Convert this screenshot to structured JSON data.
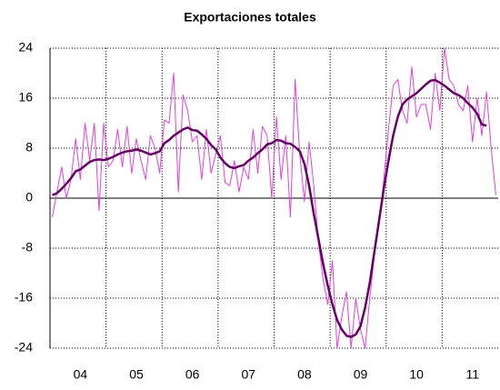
{
  "chart_data": {
    "type": "line",
    "title": "Exportaciones totales",
    "categories": [
      null,
      null,
      null,
      null,
      null,
      null,
      "04",
      null,
      null,
      null,
      null,
      null,
      null,
      null,
      null,
      null,
      null,
      null,
      "05",
      null,
      null,
      null,
      null,
      null,
      null,
      null,
      null,
      null,
      null,
      null,
      "06",
      null,
      null,
      null,
      null,
      null,
      null,
      null,
      null,
      null,
      null,
      null,
      "07",
      null,
      null,
      null,
      null,
      null,
      null,
      null,
      null,
      null,
      null,
      null,
      "08",
      null,
      null,
      null,
      null,
      null,
      null,
      null,
      null,
      null,
      null,
      null,
      "09",
      null,
      null,
      null,
      null,
      null,
      null,
      null,
      null,
      null,
      null,
      null,
      "10",
      null,
      null,
      null,
      null,
      null,
      null,
      null,
      null,
      null,
      null,
      null,
      "11",
      null,
      null,
      null,
      null,
      null
    ],
    "series": [
      {
        "color": "#e33fe0",
        "width": 1,
        "values": [
          -3,
          1,
          5,
          0,
          3,
          9.5,
          3,
          12,
          6,
          12,
          -2,
          12,
          5,
          6,
          11,
          5,
          11.5,
          4,
          9.5,
          6,
          3,
          10,
          8,
          4,
          12.5,
          12,
          20,
          1,
          16.5,
          14,
          9,
          10,
          3,
          11,
          4,
          7,
          10,
          2.5,
          2,
          6,
          1,
          5,
          3,
          11,
          4,
          11.5,
          10,
          0,
          13,
          3,
          10,
          -3,
          19,
          7,
          -0.5,
          9,
          2,
          -7,
          -13,
          -17,
          -10,
          -24,
          -19,
          -15,
          -24,
          -16,
          -21,
          -24,
          -16,
          -9,
          -4,
          3,
          11,
          18,
          19,
          14,
          12,
          21,
          13,
          15,
          15,
          11,
          20,
          14,
          24,
          19,
          18,
          15,
          14,
          18,
          9,
          16,
          10,
          17,
          8,
          0.5
        ]
      },
      {
        "color": "#660066",
        "width": 2.5,
        "values": [
          0.5,
          0.8,
          1.5,
          2.3,
          3.2,
          4.3,
          4.6,
          5.2,
          5.8,
          6.1,
          6.2,
          6.1,
          6.3,
          6.6,
          7.0,
          7.3,
          7.5,
          7.6,
          7.8,
          7.6,
          7.3,
          7.0,
          7.2,
          7.5,
          8.8,
          9.3,
          10.0,
          10.5,
          11.0,
          11.3,
          10.9,
          10.8,
          10.2,
          9.5,
          8.5,
          7.8,
          6.5,
          5.6,
          5.0,
          4.8,
          5.1,
          5.3,
          6.0,
          6.5,
          7.2,
          7.8,
          8.6,
          8.8,
          9.3,
          9.2,
          8.8,
          8.7,
          8.2,
          7.5,
          5.5,
          2.0,
          -2.5,
          -6.5,
          -10.5,
          -14.0,
          -17.0,
          -19.5,
          -21.0,
          -22.0,
          -22.2,
          -21.8,
          -20.5,
          -17.5,
          -13.5,
          -8.5,
          -3.5,
          1.5,
          6.0,
          10.0,
          13.0,
          15.0,
          15.8,
          16.3,
          16.8,
          17.5,
          18.2,
          18.8,
          18.9,
          18.5,
          18.0,
          17.4,
          16.8,
          16.5,
          16.0,
          15.2,
          14.5,
          13.5,
          11.8,
          11.6,
          null,
          null
        ]
      }
    ],
    "ylim": [
      -24,
      24
    ],
    "yticks": [
      -24,
      -16,
      -8,
      0,
      8,
      16,
      24
    ],
    "grid": true
  }
}
